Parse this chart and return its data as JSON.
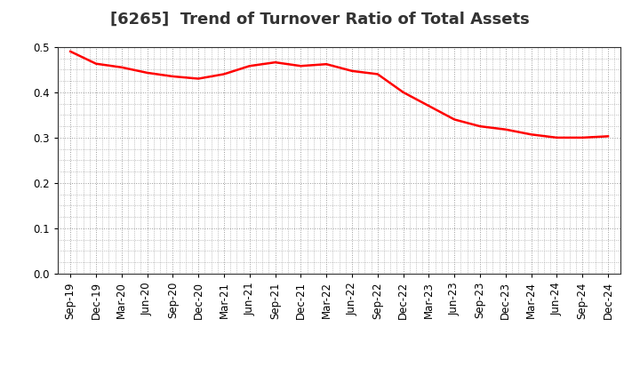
{
  "title": "[6265]  Trend of Turnover Ratio of Total Assets",
  "line_color": "#FF0000",
  "line_width": 1.8,
  "background_color": "#FFFFFF",
  "grid_color": "#999999",
  "ylim": [
    0.0,
    0.5
  ],
  "yticks": [
    0.0,
    0.1,
    0.2,
    0.3,
    0.4,
    0.5
  ],
  "x_labels": [
    "Sep-19",
    "Dec-19",
    "Mar-20",
    "Jun-20",
    "Sep-20",
    "Dec-20",
    "Mar-21",
    "Jun-21",
    "Sep-21",
    "Dec-21",
    "Mar-22",
    "Jun-22",
    "Sep-22",
    "Dec-22",
    "Mar-23",
    "Jun-23",
    "Sep-23",
    "Dec-23",
    "Mar-24",
    "Jun-24",
    "Sep-24",
    "Dec-24"
  ],
  "values": [
    0.49,
    0.463,
    0.455,
    0.443,
    0.435,
    0.43,
    0.44,
    0.458,
    0.466,
    0.458,
    0.462,
    0.447,
    0.44,
    0.4,
    0.37,
    0.34,
    0.325,
    0.318,
    0.307,
    0.3,
    0.3,
    0.303
  ],
  "title_fontsize": 13,
  "tick_fontsize": 8.5
}
